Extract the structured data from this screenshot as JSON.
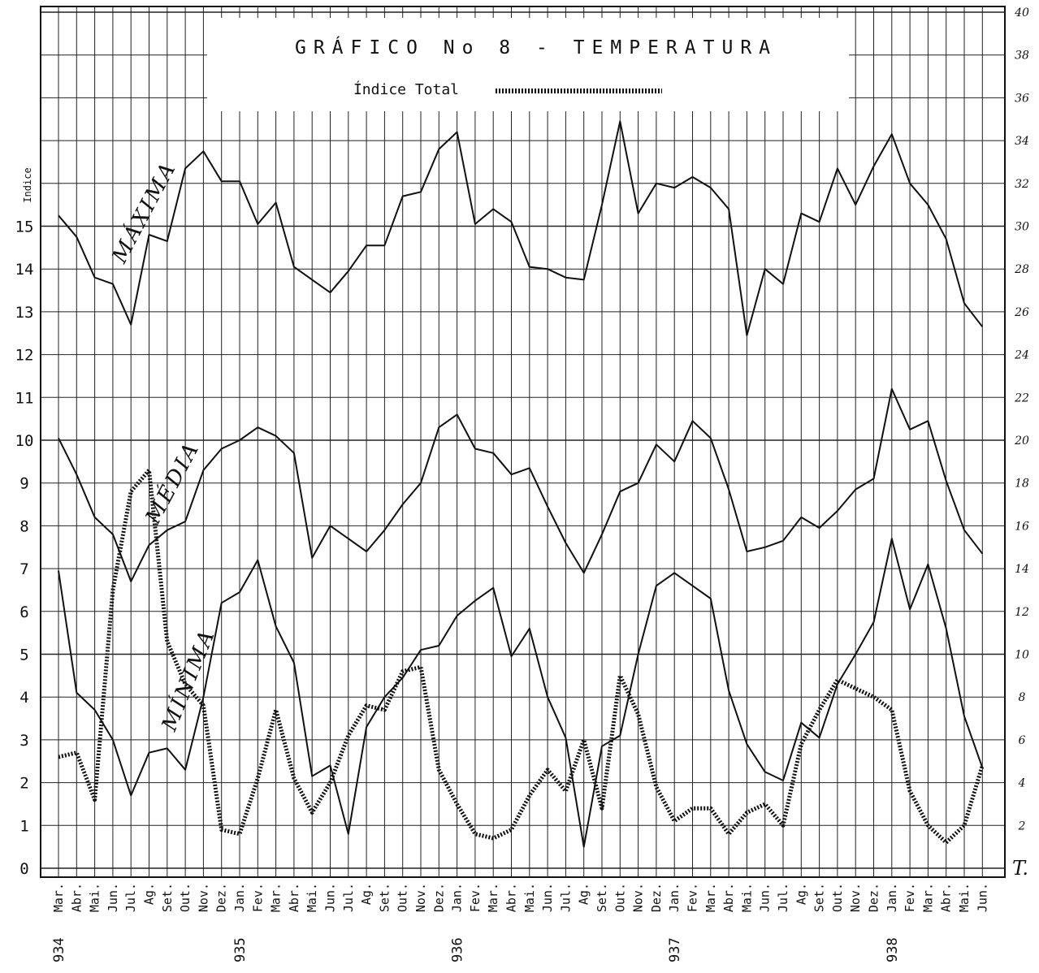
{
  "chart_data": {
    "type": "line",
    "title": "GRÁFICO No 8 - TEMPERATURA",
    "legend": [
      {
        "label": "Índice Total",
        "style": "dotted"
      }
    ],
    "left_axis": {
      "label": "Indice",
      "ticks": [
        "0",
        "1",
        "2",
        "3",
        "4",
        "5",
        "6",
        "7",
        "8",
        "9",
        "10",
        "11",
        "12",
        "13",
        "14",
        "15"
      ],
      "ylim": [
        0,
        15
      ]
    },
    "right_axis": {
      "label": "T.",
      "ticks": [
        "2",
        "4",
        "6",
        "8",
        "10",
        "12",
        "14",
        "16",
        "18",
        "20",
        "22",
        "24",
        "26",
        "28",
        "30",
        "32",
        "34",
        "36",
        "38",
        "40"
      ],
      "ylim": [
        0,
        40
      ]
    },
    "categories": [
      "Mar.",
      "Abr.",
      "Mai.",
      "Jun.",
      "Jul.",
      "Ag.",
      "Set.",
      "Out.",
      "Nov.",
      "Dez.",
      "Jan.",
      "Fev.",
      "Mar.",
      "Abr.",
      "Mai.",
      "Jun.",
      "Jul.",
      "Ag.",
      "Set.",
      "Out.",
      "Nov.",
      "Dez.",
      "Jan.",
      "Fev.",
      "Mar.",
      "Abr.",
      "Mai.",
      "Jun.",
      "Jul.",
      "Ag.",
      "Set.",
      "Out.",
      "Nov.",
      "Dez.",
      "Jan.",
      "Fev.",
      "Mar.",
      "Abr.",
      "Mai.",
      "Jun.",
      "Jul.",
      "Ag.",
      "Set.",
      "Out.",
      "Nov.",
      "Dez.",
      "Jan.",
      "Fev.",
      "Mar.",
      "Abr.",
      "Mai.",
      "Jun."
    ],
    "years": [
      {
        "label": "934",
        "index": 0
      },
      {
        "label": "935",
        "index": 10
      },
      {
        "label": "936",
        "index": 22
      },
      {
        "label": "937",
        "index": 34
      },
      {
        "label": "938",
        "index": 46
      }
    ],
    "series": [
      {
        "name": "MÁXIMA",
        "axis": "right",
        "style": "solid",
        "values": [
          30.5,
          29.5,
          27.6,
          27.3,
          25.4,
          29.6,
          29.3,
          32.7,
          33.5,
          32.1,
          32.1,
          30.1,
          31.1,
          28.1,
          27.5,
          26.9,
          27.9,
          29.1,
          29.1,
          31.4,
          31.6,
          33.6,
          34.4,
          30.1,
          30.8,
          30.2,
          28.1,
          28.0,
          27.6,
          27.5,
          31.0,
          34.9,
          30.6,
          32.0,
          31.8,
          32.3,
          31.8,
          30.8,
          24.9,
          28.0,
          27.3,
          30.6,
          30.2,
          32.7,
          31.0,
          32.8,
          34.3,
          32.0,
          31.0,
          29.4,
          26.4,
          25.3
        ]
      },
      {
        "name": "MÉDIA",
        "axis": "right",
        "style": "solid",
        "values": [
          20.1,
          18.4,
          16.4,
          15.6,
          13.4,
          15.1,
          15.8,
          16.2,
          18.6,
          19.6,
          20.0,
          20.6,
          20.2,
          19.4,
          14.5,
          16.0,
          15.4,
          14.8,
          15.8,
          17.0,
          18.0,
          20.6,
          21.2,
          19.6,
          19.4,
          18.4,
          18.7,
          16.9,
          15.2,
          13.8,
          15.6,
          17.6,
          18.0,
          19.8,
          19.0,
          20.9,
          20.1,
          17.7,
          14.8,
          15.0,
          15.3,
          16.4,
          15.9,
          16.7,
          17.7,
          18.2,
          22.4,
          20.5,
          20.9,
          18.1,
          15.8,
          14.7
        ]
      },
      {
        "name": "MÍNIMA",
        "axis": "right",
        "style": "solid",
        "values": [
          13.9,
          8.2,
          7.4,
          6.0,
          3.4,
          5.4,
          5.6,
          4.6,
          8.0,
          12.4,
          12.9,
          14.4,
          11.3,
          9.6,
          4.3,
          4.8,
          1.6,
          6.6,
          8.0,
          8.9,
          10.2,
          10.4,
          11.8,
          12.5,
          13.1,
          9.9,
          11.2,
          8.0,
          6.1,
          1.0,
          5.7,
          6.2,
          10.0,
          13.2,
          13.8,
          13.2,
          12.6,
          8.3,
          5.8,
          4.5,
          4.1,
          6.8,
          6.1,
          8.6,
          10.0,
          11.5,
          15.4,
          12.1,
          14.2,
          11.2,
          7.1,
          4.7
        ]
      },
      {
        "name": "Índice Total",
        "axis": "left",
        "style": "dotted",
        "values": [
          2.6,
          2.7,
          1.6,
          6.5,
          8.8,
          9.3,
          5.3,
          4.3,
          3.8,
          0.9,
          0.8,
          2.1,
          3.7,
          2.1,
          1.3,
          2.0,
          3.1,
          3.8,
          3.7,
          4.6,
          4.7,
          2.3,
          1.5,
          0.8,
          0.7,
          0.9,
          1.7,
          2.3,
          1.8,
          3.0,
          1.4,
          4.5,
          3.6,
          1.9,
          1.1,
          1.4,
          1.4,
          0.8,
          1.3,
          1.5,
          1.0,
          2.9,
          3.7,
          4.4,
          4.2,
          4.0,
          3.7,
          1.8,
          1.0,
          0.6,
          1.0,
          2.4
        ]
      }
    ],
    "annotations": [
      "MÁXIMA",
      "MÉDIA",
      "MÍNIMA"
    ],
    "grid": true
  }
}
